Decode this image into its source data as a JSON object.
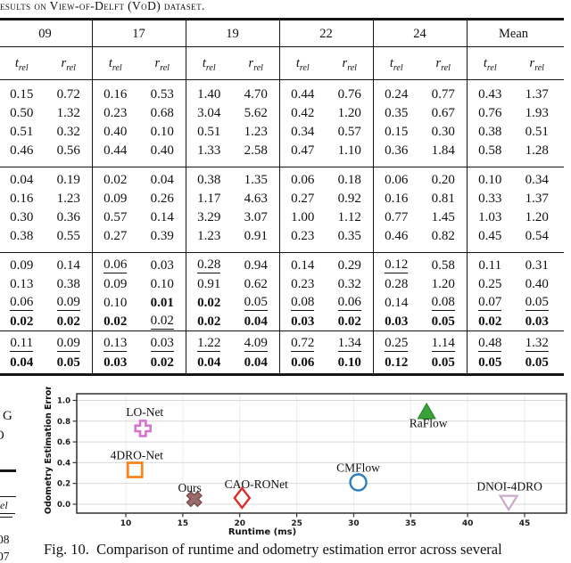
{
  "page": {
    "table_title": "esults on View-of-Delft (VoD) dataset.",
    "caption": "Fig. 10.  Comparison of runtime and odometry estimation error across several",
    "left_column_fragments": {
      "char1": "G",
      "char2": "O",
      "header_tail": "el",
      "value1": "08",
      "value2": "07"
    }
  },
  "table": {
    "col_groups": [
      "09",
      "17",
      "19",
      "22",
      "24",
      "Mean"
    ],
    "sub_header_vars": [
      "t",
      "r"
    ],
    "sub_header_subscript": "rel",
    "groups": [
      {
        "rows": [
          [
            "0.15",
            "0.72",
            "0.16",
            "0.53",
            "1.40",
            "4.70",
            "0.44",
            "0.76",
            "0.24",
            "0.77",
            "0.43",
            "1.37"
          ],
          [
            "0.50",
            "1.32",
            "0.23",
            "0.68",
            "3.04",
            "5.62",
            "0.42",
            "1.20",
            "0.35",
            "0.67",
            "0.76",
            "1.93"
          ],
          [
            "0.51",
            "0.32",
            "0.40",
            "0.10",
            "0.51",
            "1.23",
            "0.34",
            "0.57",
            "0.15",
            "0.30",
            "0.38",
            "0.51"
          ],
          [
            "0.46",
            "0.56",
            "0.44",
            "0.40",
            "1.33",
            "2.58",
            "0.47",
            "1.10",
            "0.36",
            "1.84",
            "0.58",
            "1.28"
          ]
        ]
      },
      {
        "rows": [
          [
            "0.04",
            "0.19",
            "0.02",
            "0.04",
            "0.38",
            "1.35",
            "0.06",
            "0.18",
            "0.06",
            "0.20",
            "0.10",
            "0.34"
          ],
          [
            "0.16",
            "1.23",
            "0.09",
            "0.26",
            "1.17",
            "4.63",
            "0.27",
            "0.92",
            "0.16",
            "0.81",
            "0.33",
            "1.37"
          ],
          [
            "0.30",
            "0.36",
            "0.57",
            "0.14",
            "3.29",
            "3.07",
            "1.00",
            "1.12",
            "0.77",
            "1.45",
            "1.03",
            "1.20"
          ],
          [
            "0.38",
            "0.55",
            "0.27",
            "0.39",
            "1.23",
            "0.91",
            "0.23",
            "0.35",
            "0.46",
            "0.82",
            "0.45",
            "0.54"
          ]
        ]
      },
      {
        "rows": [
          [
            "0.09",
            "0.14",
            "0.06|u",
            "0.03",
            "0.28|u",
            "0.94",
            "0.14",
            "0.29",
            "0.12|u",
            "0.58",
            "0.11",
            "0.31"
          ],
          [
            "0.13",
            "0.38",
            "0.09",
            "0.10",
            "0.91",
            "0.62",
            "0.23",
            "0.32",
            "0.28",
            "1.20",
            "0.25",
            "0.40"
          ],
          [
            "0.06|u",
            "0.09|u",
            "0.10",
            "0.01|b",
            "0.02|b",
            "0.05|u",
            "0.08|u",
            "0.06|u",
            "0.14",
            "0.08|u",
            "0.07|u",
            "0.05|u"
          ],
          [
            "0.02|b",
            "0.02|b",
            "0.02|b",
            "0.02|u",
            "0.02|b",
            "0.04|b",
            "0.03|b",
            "0.02|b",
            "0.03|b",
            "0.05|b",
            "0.02|b",
            "0.03|b"
          ]
        ]
      },
      {
        "rows": [
          [
            "0.11|u",
            "0.09|u",
            "0.13|u",
            "0.03|u",
            "1.22|u",
            "4.09|u",
            "0.72|u",
            "1.34|u",
            "0.25|u",
            "1.14|u",
            "0.48|u",
            "1.32|u"
          ],
          [
            "0.04|b",
            "0.05|b",
            "0.03|b",
            "0.02|b",
            "0.04|b",
            "0.04|b",
            "0.06|b",
            "0.10|b",
            "0.12|b",
            "0.05|b",
            "0.05|b",
            "0.05|b"
          ]
        ]
      }
    ]
  },
  "chart_data": {
    "type": "scatter",
    "xlabel": "Runtime (ms)",
    "ylabel": "Odometry Estimation Error",
    "xlim": [
      5.69,
      48.68
    ],
    "ylim": [
      -0.086,
      1.064
    ],
    "xticks": [
      10,
      15,
      20,
      25,
      30,
      35,
      40,
      45
    ],
    "yticks": [
      0.0,
      0.2,
      0.4,
      0.6,
      0.8,
      1.0
    ],
    "grid": true,
    "legend_position": "none",
    "points": [
      {
        "name": "LO-Net",
        "x": 11.5,
        "y": 0.73,
        "marker": "plus",
        "edge": "#d973cf",
        "face": "#ffffff",
        "label_offset": [
          2,
          -14
        ]
      },
      {
        "name": "4DRO-Net",
        "x": 10.8,
        "y": 0.33,
        "marker": "square",
        "edge": "#f6861f",
        "face": "none",
        "label_offset": [
          2,
          -12
        ]
      },
      {
        "name": "Ours",
        "x": 16.0,
        "y": 0.05,
        "marker": "x",
        "edge": "#714747",
        "face": "#9c6a6a",
        "label_offset": [
          -5,
          -8
        ]
      },
      {
        "name": "CAO-RONet",
        "x": 20.2,
        "y": 0.06,
        "marker": "diamond",
        "edge": "#dd2c2c",
        "face": "#ffffff",
        "label_offset": [
          16,
          -11
        ]
      },
      {
        "name": "CMFlow",
        "x": 30.4,
        "y": 0.21,
        "marker": "circle",
        "edge": "#2e7fbe",
        "face": "#ffffff",
        "label_offset": [
          0,
          -12
        ]
      },
      {
        "name": "RaFlow",
        "x": 36.4,
        "y": 0.89,
        "marker": "triangle-up",
        "edge": "#2f8f2f",
        "face": "#3aa23a",
        "label_offset": [
          2,
          17
        ]
      },
      {
        "name": "DNOI-4DRO",
        "x": 43.6,
        "y": 0.02,
        "marker": "triangle-down",
        "edge": "#c9a9c9",
        "face": "#ffffff",
        "label_offset": [
          1,
          -13
        ]
      }
    ]
  }
}
